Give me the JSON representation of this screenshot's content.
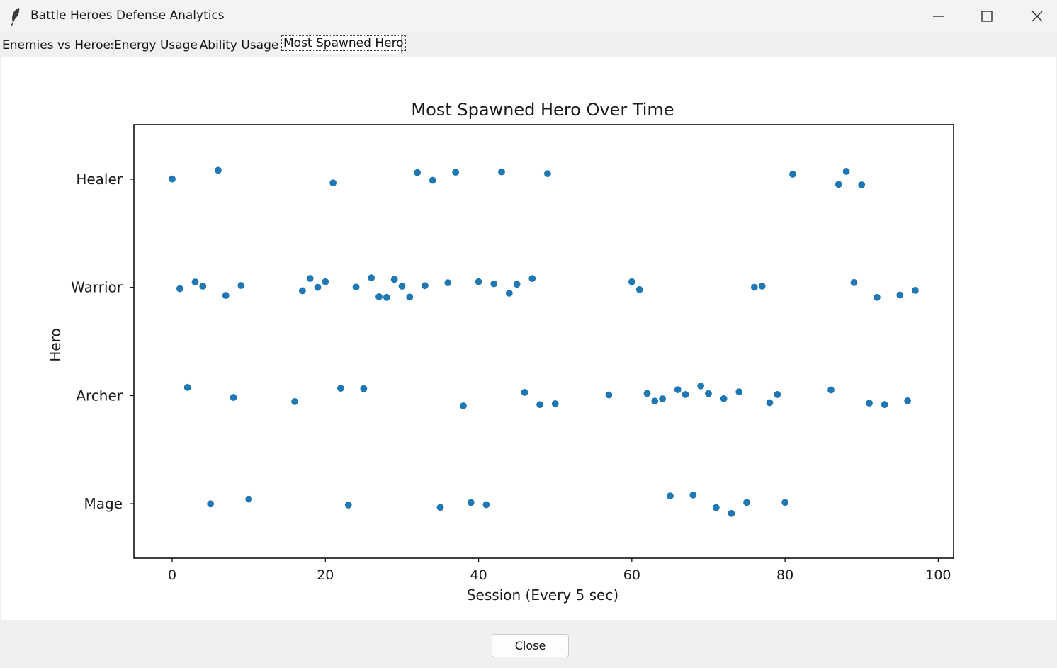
{
  "window": {
    "title": "Battle Heroes Defense Analytics",
    "icon": "feather-icon"
  },
  "tabs": [
    {
      "label": "Enemies vs Heroes",
      "active": false
    },
    {
      "label": "Energy Usage",
      "active": false
    },
    {
      "label": "Ability Usage",
      "active": false
    },
    {
      "label": "Most Spawned Hero",
      "active": true
    }
  ],
  "footer": {
    "close_label": "Close"
  },
  "colors": {
    "point": "#1f77b4"
  },
  "chart_data": {
    "type": "scatter",
    "title": "Most Spawned Hero Over Time",
    "xlabel": "Session (Every 5 sec)",
    "ylabel": "Hero",
    "categories": [
      "Healer",
      "Warrior",
      "Archer",
      "Mage"
    ],
    "xlim": [
      -5,
      102
    ],
    "xticks": [
      0,
      20,
      40,
      60,
      80,
      100
    ],
    "grid": false,
    "series": [
      {
        "points": [
          {
            "x": 0,
            "y": "Healer"
          },
          {
            "x": 1,
            "y": "Warrior"
          },
          {
            "x": 2,
            "y": "Archer"
          },
          {
            "x": 3,
            "y": "Warrior"
          },
          {
            "x": 4,
            "y": "Warrior"
          },
          {
            "x": 5,
            "y": "Mage"
          },
          {
            "x": 6,
            "y": "Healer"
          },
          {
            "x": 7,
            "y": "Warrior"
          },
          {
            "x": 8,
            "y": "Archer"
          },
          {
            "x": 9,
            "y": "Warrior"
          },
          {
            "x": 10,
            "y": "Mage"
          },
          {
            "x": 16,
            "y": "Archer"
          },
          {
            "x": 17,
            "y": "Warrior"
          },
          {
            "x": 18,
            "y": "Warrior"
          },
          {
            "x": 19,
            "y": "Warrior"
          },
          {
            "x": 20,
            "y": "Warrior"
          },
          {
            "x": 21,
            "y": "Healer"
          },
          {
            "x": 22,
            "y": "Archer"
          },
          {
            "x": 23,
            "y": "Mage"
          },
          {
            "x": 24,
            "y": "Warrior"
          },
          {
            "x": 25,
            "y": "Archer"
          },
          {
            "x": 26,
            "y": "Warrior"
          },
          {
            "x": 27,
            "y": "Warrior"
          },
          {
            "x": 28,
            "y": "Warrior"
          },
          {
            "x": 29,
            "y": "Warrior"
          },
          {
            "x": 30,
            "y": "Warrior"
          },
          {
            "x": 31,
            "y": "Warrior"
          },
          {
            "x": 32,
            "y": "Healer"
          },
          {
            "x": 33,
            "y": "Warrior"
          },
          {
            "x": 34,
            "y": "Healer"
          },
          {
            "x": 35,
            "y": "Mage"
          },
          {
            "x": 36,
            "y": "Warrior"
          },
          {
            "x": 37,
            "y": "Healer"
          },
          {
            "x": 38,
            "y": "Archer"
          },
          {
            "x": 39,
            "y": "Mage"
          },
          {
            "x": 40,
            "y": "Warrior"
          },
          {
            "x": 41,
            "y": "Mage"
          },
          {
            "x": 42,
            "y": "Warrior"
          },
          {
            "x": 43,
            "y": "Healer"
          },
          {
            "x": 44,
            "y": "Warrior"
          },
          {
            "x": 45,
            "y": "Warrior"
          },
          {
            "x": 46,
            "y": "Archer"
          },
          {
            "x": 47,
            "y": "Warrior"
          },
          {
            "x": 48,
            "y": "Archer"
          },
          {
            "x": 49,
            "y": "Healer"
          },
          {
            "x": 50,
            "y": "Archer"
          },
          {
            "x": 57,
            "y": "Archer"
          },
          {
            "x": 60,
            "y": "Warrior"
          },
          {
            "x": 61,
            "y": "Warrior"
          },
          {
            "x": 62,
            "y": "Archer"
          },
          {
            "x": 63,
            "y": "Archer"
          },
          {
            "x": 64,
            "y": "Archer"
          },
          {
            "x": 65,
            "y": "Mage"
          },
          {
            "x": 66,
            "y": "Archer"
          },
          {
            "x": 67,
            "y": "Archer"
          },
          {
            "x": 68,
            "y": "Mage"
          },
          {
            "x": 69,
            "y": "Archer"
          },
          {
            "x": 70,
            "y": "Archer"
          },
          {
            "x": 71,
            "y": "Mage"
          },
          {
            "x": 72,
            "y": "Archer"
          },
          {
            "x": 73,
            "y": "Mage"
          },
          {
            "x": 74,
            "y": "Archer"
          },
          {
            "x": 75,
            "y": "Mage"
          },
          {
            "x": 76,
            "y": "Warrior"
          },
          {
            "x": 77,
            "y": "Warrior"
          },
          {
            "x": 78,
            "y": "Archer"
          },
          {
            "x": 79,
            "y": "Archer"
          },
          {
            "x": 80,
            "y": "Mage"
          },
          {
            "x": 81,
            "y": "Healer"
          },
          {
            "x": 86,
            "y": "Archer"
          },
          {
            "x": 87,
            "y": "Healer"
          },
          {
            "x": 88,
            "y": "Healer"
          },
          {
            "x": 89,
            "y": "Warrior"
          },
          {
            "x": 90,
            "y": "Healer"
          },
          {
            "x": 91,
            "y": "Archer"
          },
          {
            "x": 92,
            "y": "Warrior"
          },
          {
            "x": 93,
            "y": "Archer"
          },
          {
            "x": 95,
            "y": "Warrior"
          },
          {
            "x": 96,
            "y": "Archer"
          },
          {
            "x": 97,
            "y": "Warrior"
          }
        ]
      }
    ]
  }
}
